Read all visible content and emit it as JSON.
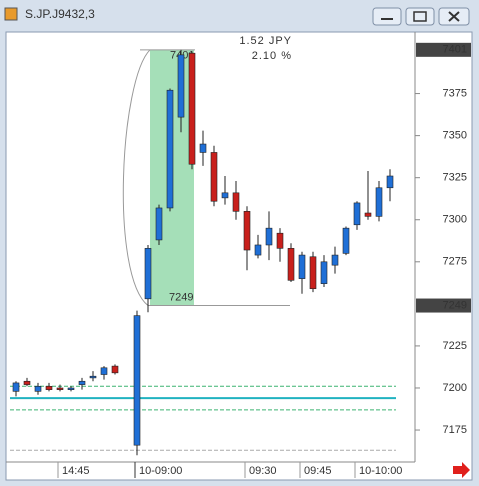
{
  "window_title": "S.JP.J9432,3",
  "chart_data": {
    "type": "candlestick",
    "categories": [
      null,
      null,
      null,
      null,
      "14:45",
      null,
      null,
      null,
      null,
      null,
      "10-09:00",
      null,
      null,
      null,
      null,
      null,
      null,
      null,
      null,
      null,
      "09:30",
      null,
      null,
      null,
      null,
      "09:45",
      null,
      null,
      null,
      null,
      "10-10:00",
      null,
      null,
      null
    ],
    "open": [
      7198,
      7204,
      7198,
      7201,
      7200,
      7199,
      7202,
      7206,
      7208,
      7213,
      7166,
      7253,
      7288,
      7307,
      7361,
      7399,
      7340,
      7340,
      7313,
      7316,
      7305,
      7279,
      7285,
      7292,
      7283,
      7265,
      7278,
      7262,
      7273,
      7280,
      7297,
      7304,
      7302,
      7319
    ],
    "high": [
      7204,
      7206,
      7203,
      7203,
      7202,
      7201,
      7206,
      7210,
      7213,
      7214,
      7246,
      7285,
      7309,
      7378,
      7401,
      7400,
      7353,
      7344,
      7326,
      7323,
      7308,
      7291,
      7305,
      7295,
      7286,
      7281,
      7281,
      7279,
      7284,
      7296,
      7311,
      7329,
      7323,
      7330
    ],
    "low": [
      7195,
      7201,
      7196,
      7198,
      7198,
      7198,
      7199,
      7204,
      7205,
      7208,
      7160,
      7245,
      7285,
      7305,
      7352,
      7330,
      7332,
      7308,
      7309,
      7300,
      7270,
      7277,
      7276,
      7275,
      7263,
      7256,
      7257,
      7260,
      7268,
      7279,
      7294,
      7300,
      7299,
      7311
    ],
    "close": [
      7203,
      7202,
      7201,
      7199,
      7199,
      7200,
      7204,
      7207,
      7212,
      7209,
      7243,
      7283,
      7307,
      7377,
      7398,
      7333,
      7345,
      7311,
      7316,
      7305,
      7282,
      7285,
      7295,
      7283,
      7264,
      7279,
      7259,
      7275,
      7279,
      7295,
      7310,
      7302,
      7319,
      7326
    ],
    "up_color": "#1f6fd6",
    "down_color": "#c8201c",
    "ylim": [
      7156,
      7411
    ],
    "yticks": [
      7175,
      7200,
      7225,
      7275,
      7300,
      7325,
      7350,
      7375
    ],
    "levels": [
      {
        "value": 7201,
        "color": "#3cb371",
        "style": "dashed"
      },
      {
        "value": 7194,
        "color": "#20b2c0",
        "style": "solid"
      },
      {
        "value": 7187,
        "color": "#3cb371",
        "style": "dashed"
      },
      {
        "value": 7163,
        "color": "#aaaaaa",
        "style": "dashed"
      }
    ],
    "measurement": {
      "high": 7401,
      "low": 7249,
      "change": "1.52 JPY",
      "percent": "2.10 %"
    }
  }
}
